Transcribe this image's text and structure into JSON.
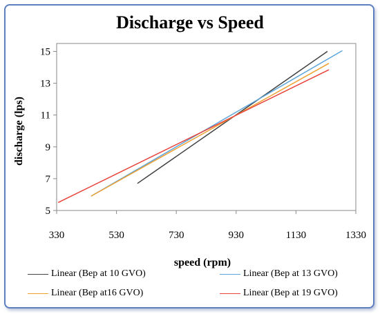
{
  "chart_data": {
    "type": "line",
    "title": "Discharge vs Speed",
    "xlabel": "speed (rpm)",
    "ylabel": "discharge (lps)",
    "xlim": [
      330,
      1330
    ],
    "ylim": [
      5,
      15.5
    ],
    "xticks": [
      330,
      530,
      730,
      930,
      1130,
      1330
    ],
    "yticks": [
      5,
      7,
      9,
      11,
      13,
      15
    ],
    "grid": false,
    "legend_position": "bottom",
    "series": [
      {
        "name": "Linear (Bep at 10 GVO)",
        "color": "#404040",
        "x": [
          600,
          1235
        ],
        "y": [
          6.7,
          15.0
        ]
      },
      {
        "name": "Linear (Bep at 13 GVO)",
        "color": "#5ba3d9",
        "x": [
          445,
          1285
        ],
        "y": [
          5.9,
          15.05
        ]
      },
      {
        "name": "Linear (Bep at16 GVO)",
        "color": "#f0a030",
        "x": [
          445,
          1240
        ],
        "y": [
          5.9,
          14.25
        ]
      },
      {
        "name": "Linear (Bep at 19 GVO)",
        "color": "#e8423a",
        "x": [
          335,
          1240
        ],
        "y": [
          5.5,
          13.85
        ]
      }
    ]
  }
}
